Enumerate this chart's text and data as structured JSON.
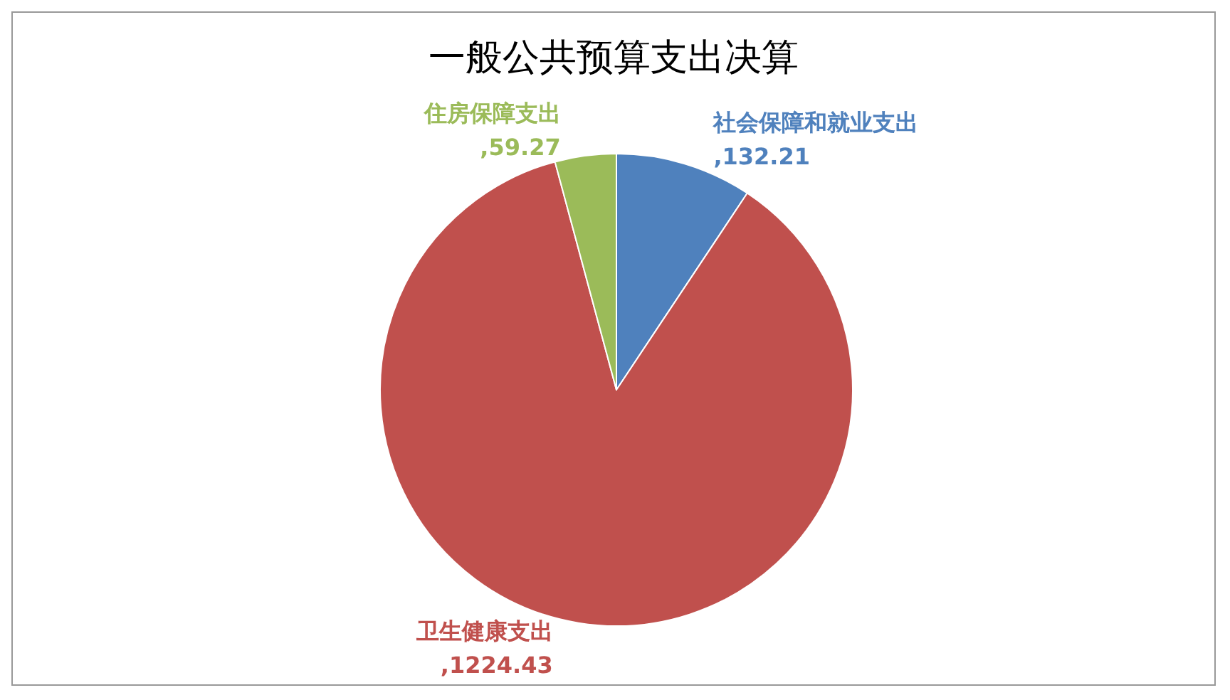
{
  "chart_data": {
    "type": "pie",
    "title": "一般公共预算支出决算",
    "categories": [
      "社会保障和就业支出",
      "卫生健康支出",
      "住房保障支出"
    ],
    "values": [
      132.21,
      1224.43,
      59.27
    ],
    "colors": [
      "#4f81bd",
      "#c0504d",
      "#9bbb59"
    ],
    "value_labels": [
      ",132.21",
      ",1224.43",
      ",59.27"
    ]
  }
}
